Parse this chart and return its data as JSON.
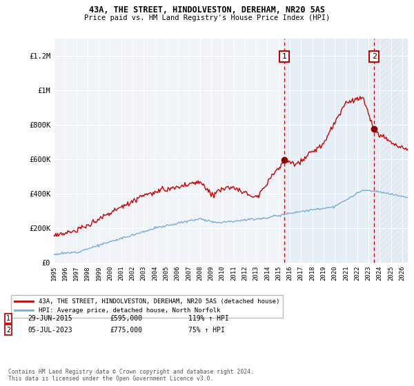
{
  "title": "43A, THE STREET, HINDOLVESTON, DEREHAM, NR20 5AS",
  "subtitle": "Price paid vs. HM Land Registry's House Price Index (HPI)",
  "ylabel_ticks": [
    "£0",
    "£200K",
    "£400K",
    "£600K",
    "£800K",
    "£1M",
    "£1.2M"
  ],
  "ytick_values": [
    0,
    200000,
    400000,
    600000,
    800000,
    1000000,
    1200000
  ],
  "ylim": [
    0,
    1300000
  ],
  "xlim_start": 1995.0,
  "xlim_end": 2026.5,
  "sale1_date": 2015.5,
  "sale1_price": 595000,
  "sale1_label": "1",
  "sale2_date": 2023.51,
  "sale2_price": 775000,
  "sale2_label": "2",
  "red_line_color": "#cc0000",
  "blue_line_color": "#7aadd4",
  "dashed_color": "#cc0000",
  "fill_between_color": "#d6e8f5",
  "hatch_color": "#c8d8e8",
  "legend_red_label": "43A, THE STREET, HINDOLVESTON, DEREHAM, NR20 5AS (detached house)",
  "legend_blue_label": "HPI: Average price, detached house, North Norfolk",
  "footer": "Contains HM Land Registry data © Crown copyright and database right 2024.\nThis data is licensed under the Open Government Licence v3.0.",
  "background_color": "#ffffff",
  "plot_bg_color": "#f0f4f8"
}
